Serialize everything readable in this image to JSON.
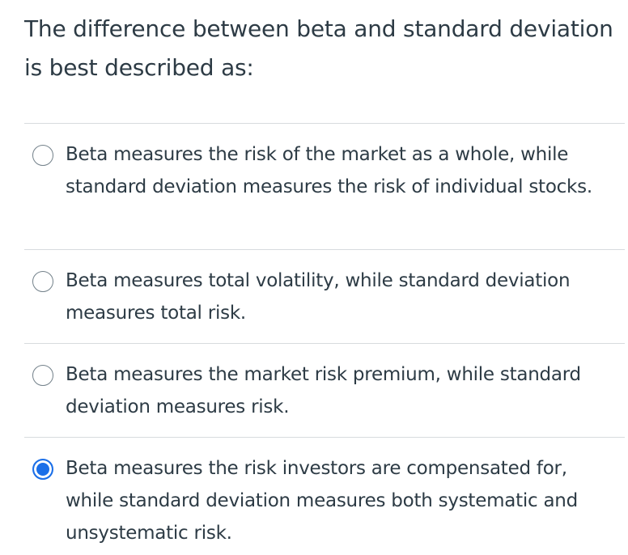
{
  "question": {
    "text": "The difference between beta and standard deviation is best described as:"
  },
  "answers": [
    {
      "text": "Beta measures the risk of the market as a whole, while standard deviation measures the risk of individual stocks.",
      "selected": false
    },
    {
      "text": "Beta measures total volatility, while standard deviation measures total risk.",
      "selected": false
    },
    {
      "text": "Beta measures the market risk premium, while standard deviation measures risk.",
      "selected": false
    },
    {
      "text": "Beta measures the risk investors are compensated for, while standard deviation measures both systematic and unsystematic risk.",
      "selected": true
    }
  ],
  "colors": {
    "text": "#2d3b45",
    "divider": "#d7dbde",
    "radio_border": "#73818a",
    "radio_selected": "#1b6fe8"
  },
  "icons": {
    "unselected": "radio-unselected-icon",
    "selected": "radio-selected-icon"
  }
}
